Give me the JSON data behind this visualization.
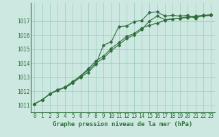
{
  "xlabel": "Graphe pression niveau de la mer (hPa)",
  "background_color": "#cce8e0",
  "grid_color": "#99ccbb",
  "line_color": "#2d6e3a",
  "x_values": [
    0,
    1,
    2,
    3,
    4,
    5,
    6,
    7,
    8,
    9,
    10,
    11,
    12,
    13,
    14,
    15,
    16,
    17,
    18,
    19,
    20,
    21,
    22,
    23
  ],
  "series1": [
    1011.1,
    1011.4,
    1011.8,
    1012.1,
    1012.25,
    1012.6,
    1013.0,
    1013.35,
    1013.9,
    1015.3,
    1015.5,
    1016.6,
    1016.65,
    1016.95,
    1017.05,
    1017.6,
    1017.65,
    1017.35,
    1017.4,
    1017.35,
    1017.4,
    1017.2,
    1017.4,
    1017.45
  ],
  "series2": [
    1011.1,
    1011.4,
    1011.8,
    1012.05,
    1012.3,
    1012.6,
    1013.05,
    1013.5,
    1014.0,
    1014.35,
    1014.9,
    1015.3,
    1015.75,
    1016.0,
    1016.4,
    1017.0,
    1017.35,
    1017.1,
    1017.15,
    1017.2,
    1017.25,
    1017.3,
    1017.35,
    1017.4
  ],
  "series3": [
    1011.1,
    1011.4,
    1011.8,
    1012.1,
    1012.3,
    1012.7,
    1013.1,
    1013.6,
    1014.15,
    1014.5,
    1015.05,
    1015.45,
    1015.9,
    1016.1,
    1016.5,
    1016.7,
    1016.85,
    1017.05,
    1017.15,
    1017.2,
    1017.3,
    1017.35,
    1017.4,
    1017.4
  ],
  "ylim_min": 1010.5,
  "ylim_max": 1018.3,
  "yticks": [
    1011,
    1012,
    1013,
    1014,
    1015,
    1016,
    1017
  ],
  "xticks": [
    0,
    1,
    2,
    3,
    4,
    5,
    6,
    7,
    8,
    9,
    10,
    11,
    12,
    13,
    14,
    15,
    16,
    17,
    18,
    19,
    20,
    21,
    22,
    23
  ],
  "marker_size": 2.5,
  "line_width": 0.8,
  "xlabel_fontsize": 6.5,
  "tick_fontsize": 5.5
}
